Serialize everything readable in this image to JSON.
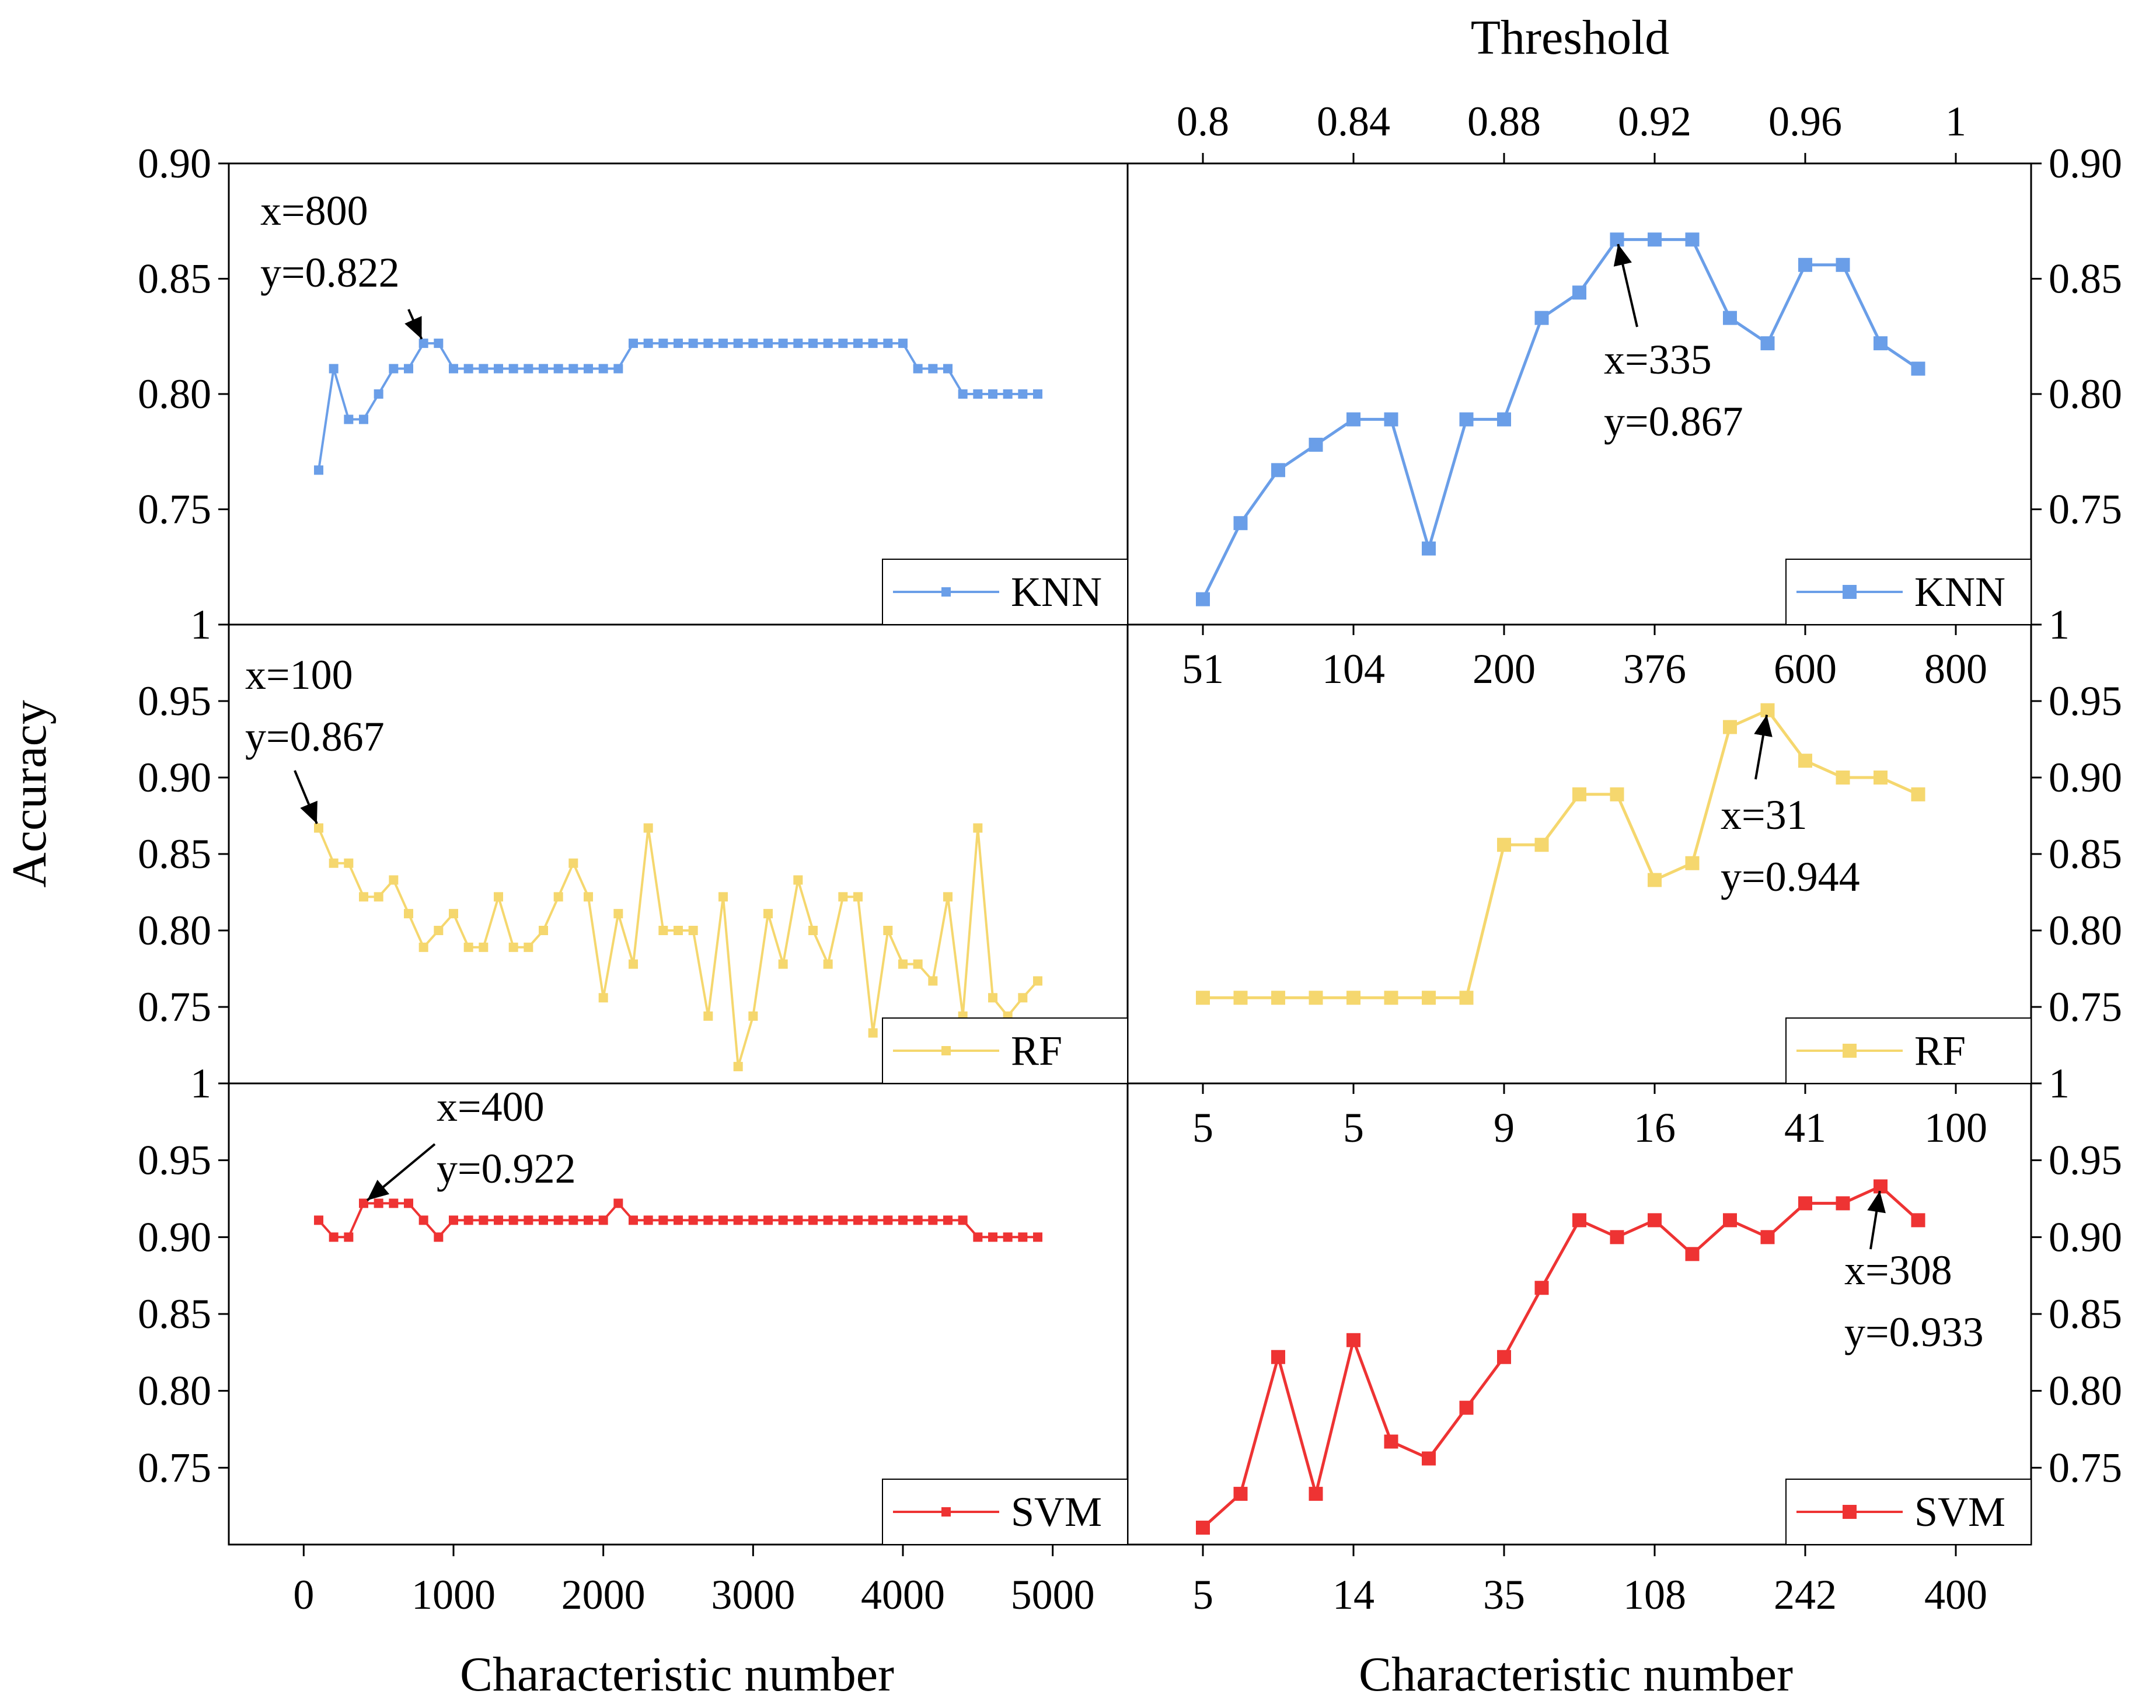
{
  "figure": {
    "y_axis_label": "Accuracy",
    "x_axis_label_left": "Characteristic number",
    "x_axis_label_right": "Characteristic number",
    "top_axis_title": "Threshold",
    "threshold_ticks": [
      "0.8",
      "0.84",
      "0.88",
      "0.92",
      "0.96",
      "1"
    ],
    "left_x_ticks": [
      "0",
      "1000",
      "2000",
      "3000",
      "4000",
      "5000"
    ],
    "right_bottom_ticks": [
      "5",
      "14",
      "35",
      "108",
      "242",
      "400"
    ],
    "right_mid_ticks_rf": [
      "51",
      "104",
      "200",
      "376",
      "600",
      "800"
    ],
    "right_mid_ticks_svm": [
      "5",
      "5",
      "9",
      "16",
      "41",
      "100"
    ]
  },
  "chart_data": [
    {
      "id": "knn-left",
      "type": "line",
      "panel": "left",
      "row": 0,
      "series": [
        {
          "name": "KNN",
          "color": "#6a9ee8",
          "x": [
            100,
            200,
            300,
            400,
            500,
            600,
            700,
            800,
            900,
            1000,
            1100,
            1200,
            1300,
            1400,
            1500,
            1600,
            1700,
            1800,
            1900,
            2000,
            2100,
            2200,
            2300,
            2400,
            2500,
            2600,
            2700,
            2800,
            2900,
            3000,
            3100,
            3200,
            3300,
            3400,
            3500,
            3600,
            3700,
            3800,
            3900,
            4000,
            4100,
            4200,
            4300,
            4400,
            4500,
            4600,
            4700,
            4800,
            4900
          ],
          "y": [
            0.767,
            0.811,
            0.789,
            0.789,
            0.8,
            0.811,
            0.811,
            0.822,
            0.822,
            0.811,
            0.811,
            0.811,
            0.811,
            0.811,
            0.811,
            0.811,
            0.811,
            0.811,
            0.811,
            0.811,
            0.811,
            0.822,
            0.822,
            0.822,
            0.822,
            0.822,
            0.822,
            0.822,
            0.822,
            0.822,
            0.822,
            0.822,
            0.822,
            0.822,
            0.822,
            0.822,
            0.822,
            0.822,
            0.822,
            0.822,
            0.811,
            0.811,
            0.811,
            0.8,
            0.8,
            0.8,
            0.8,
            0.8,
            0.8
          ]
        }
      ],
      "xlim": [
        -500,
        5500
      ],
      "ylim": [
        0.7,
        0.9
      ],
      "y_ticks": [
        "0.75",
        "0.80",
        "0.85",
        "0.90"
      ],
      "legend": "bottom-right",
      "annotation": {
        "lines": [
          "x=800",
          "y=0.822"
        ],
        "point": [
          800,
          0.822
        ]
      }
    },
    {
      "id": "rf-left",
      "type": "line",
      "panel": "left",
      "row": 1,
      "series": [
        {
          "name": "RF",
          "color": "#f5d76e",
          "x": [
            100,
            200,
            300,
            400,
            500,
            600,
            700,
            800,
            900,
            1000,
            1100,
            1200,
            1300,
            1400,
            1500,
            1600,
            1700,
            1800,
            1900,
            2000,
            2100,
            2200,
            2300,
            2400,
            2500,
            2600,
            2700,
            2800,
            2900,
            3000,
            3100,
            3200,
            3300,
            3400,
            3500,
            3600,
            3700,
            3800,
            3900,
            4000,
            4100,
            4200,
            4300,
            4400,
            4500,
            4600,
            4700,
            4800,
            4900
          ],
          "y": [
            0.867,
            0.844,
            0.844,
            0.822,
            0.822,
            0.833,
            0.811,
            0.789,
            0.8,
            0.811,
            0.789,
            0.789,
            0.822,
            0.789,
            0.789,
            0.8,
            0.822,
            0.844,
            0.822,
            0.756,
            0.811,
            0.778,
            0.867,
            0.8,
            0.8,
            0.8,
            0.744,
            0.822,
            0.711,
            0.744,
            0.811,
            0.778,
            0.833,
            0.8,
            0.778,
            0.822,
            0.822,
            0.733,
            0.8,
            0.778,
            0.778,
            0.767,
            0.822,
            0.744,
            0.867,
            0.756,
            0.744,
            0.756,
            0.767
          ]
        }
      ],
      "xlim": [
        -500,
        5500
      ],
      "ylim": [
        0.7,
        1.0
      ],
      "y_ticks": [
        "0.75",
        "0.80",
        "0.85",
        "0.90",
        "0.95",
        "1"
      ],
      "legend": "bottom-right",
      "annotation": {
        "lines": [
          "x=100",
          "y=0.867"
        ],
        "point": [
          100,
          0.867
        ]
      }
    },
    {
      "id": "svm-left",
      "type": "line",
      "panel": "left",
      "row": 2,
      "series": [
        {
          "name": "SVM",
          "color": "#ee3333",
          "x": [
            100,
            200,
            300,
            400,
            500,
            600,
            700,
            800,
            900,
            1000,
            1100,
            1200,
            1300,
            1400,
            1500,
            1600,
            1700,
            1800,
            1900,
            2000,
            2100,
            2200,
            2300,
            2400,
            2500,
            2600,
            2700,
            2800,
            2900,
            3000,
            3100,
            3200,
            3300,
            3400,
            3500,
            3600,
            3700,
            3800,
            3900,
            4000,
            4100,
            4200,
            4300,
            4400,
            4500,
            4600,
            4700,
            4800,
            4900
          ],
          "y": [
            0.911,
            0.9,
            0.9,
            0.922,
            0.922,
            0.922,
            0.922,
            0.911,
            0.9,
            0.911,
            0.911,
            0.911,
            0.911,
            0.911,
            0.911,
            0.911,
            0.911,
            0.911,
            0.911,
            0.911,
            0.922,
            0.911,
            0.911,
            0.911,
            0.911,
            0.911,
            0.911,
            0.911,
            0.911,
            0.911,
            0.911,
            0.911,
            0.911,
            0.911,
            0.911,
            0.911,
            0.911,
            0.911,
            0.911,
            0.911,
            0.911,
            0.911,
            0.911,
            0.911,
            0.9,
            0.9,
            0.9,
            0.9,
            0.9
          ]
        }
      ],
      "xlim": [
        -500,
        5500
      ],
      "ylim": [
        0.7,
        1.0
      ],
      "y_ticks": [
        "0.75",
        "0.80",
        "0.85",
        "0.90",
        "0.95",
        "1"
      ],
      "legend": "bottom-right",
      "annotation": {
        "lines": [
          "x=400",
          "y=0.922"
        ],
        "point": [
          400,
          0.922
        ]
      }
    },
    {
      "id": "knn-right",
      "type": "line",
      "panel": "right",
      "row": 0,
      "series": [
        {
          "name": "KNN",
          "color": "#6a9ee8",
          "x": [
            0.8,
            0.81,
            0.82,
            0.83,
            0.84,
            0.85,
            0.86,
            0.87,
            0.88,
            0.89,
            0.9,
            0.91,
            0.92,
            0.93,
            0.94,
            0.95,
            0.96,
            0.97,
            0.98,
            0.99
          ],
          "y": [
            0.711,
            0.744,
            0.767,
            0.778,
            0.789,
            0.789,
            0.733,
            0.789,
            0.789,
            0.833,
            0.844,
            0.867,
            0.867,
            0.867,
            0.833,
            0.822,
            0.856,
            0.856,
            0.822,
            0.811
          ]
        }
      ],
      "xlim": [
        0.78,
        1.02
      ],
      "ylim": [
        0.7,
        0.9
      ],
      "y_ticks": [
        "0.75",
        "0.80",
        "0.85",
        "0.90"
      ],
      "legend": "bottom-right",
      "annotation": {
        "lines": [
          "x=335",
          "y=0.867"
        ],
        "point": [
          0.91,
          0.867
        ]
      }
    },
    {
      "id": "rf-right",
      "type": "line",
      "panel": "right",
      "row": 1,
      "series": [
        {
          "name": "RF",
          "color": "#f5d76e",
          "x": [
            0.8,
            0.81,
            0.82,
            0.83,
            0.84,
            0.85,
            0.86,
            0.87,
            0.88,
            0.89,
            0.9,
            0.91,
            0.92,
            0.93,
            0.94,
            0.95,
            0.96,
            0.97,
            0.98,
            0.99
          ],
          "y": [
            0.756,
            0.756,
            0.756,
            0.756,
            0.756,
            0.756,
            0.756,
            0.756,
            0.856,
            0.856,
            0.889,
            0.889,
            0.833,
            0.844,
            0.933,
            0.944,
            0.911,
            0.9,
            0.9,
            0.889
          ]
        }
      ],
      "xlim": [
        0.78,
        1.02
      ],
      "ylim": [
        0.7,
        1.0
      ],
      "y_ticks": [
        "0.75",
        "0.80",
        "0.85",
        "0.90",
        "0.95",
        "1"
      ],
      "legend": "bottom-right",
      "annotation": {
        "lines": [
          "x=31",
          "y=0.944"
        ],
        "point": [
          0.95,
          0.944
        ]
      }
    },
    {
      "id": "svm-right",
      "type": "line",
      "panel": "right",
      "row": 2,
      "series": [
        {
          "name": "SVM",
          "color": "#ee3333",
          "x": [
            0.8,
            0.81,
            0.82,
            0.83,
            0.84,
            0.85,
            0.86,
            0.87,
            0.88,
            0.89,
            0.9,
            0.91,
            0.92,
            0.93,
            0.94,
            0.95,
            0.96,
            0.97,
            0.98,
            0.99
          ],
          "y": [
            0.711,
            0.733,
            0.822,
            0.733,
            0.833,
            0.767,
            0.756,
            0.789,
            0.822,
            0.867,
            0.911,
            0.9,
            0.911,
            0.889,
            0.911,
            0.9,
            0.922,
            0.922,
            0.933,
            0.911
          ]
        }
      ],
      "xlim": [
        0.78,
        1.02
      ],
      "ylim": [
        0.7,
        1.0
      ],
      "y_ticks": [
        "0.75",
        "0.80",
        "0.85",
        "0.90",
        "0.95",
        "1"
      ],
      "legend": "bottom-right",
      "annotation": {
        "lines": [
          "x=308",
          "y=0.933"
        ],
        "point": [
          0.98,
          0.933
        ]
      }
    }
  ]
}
